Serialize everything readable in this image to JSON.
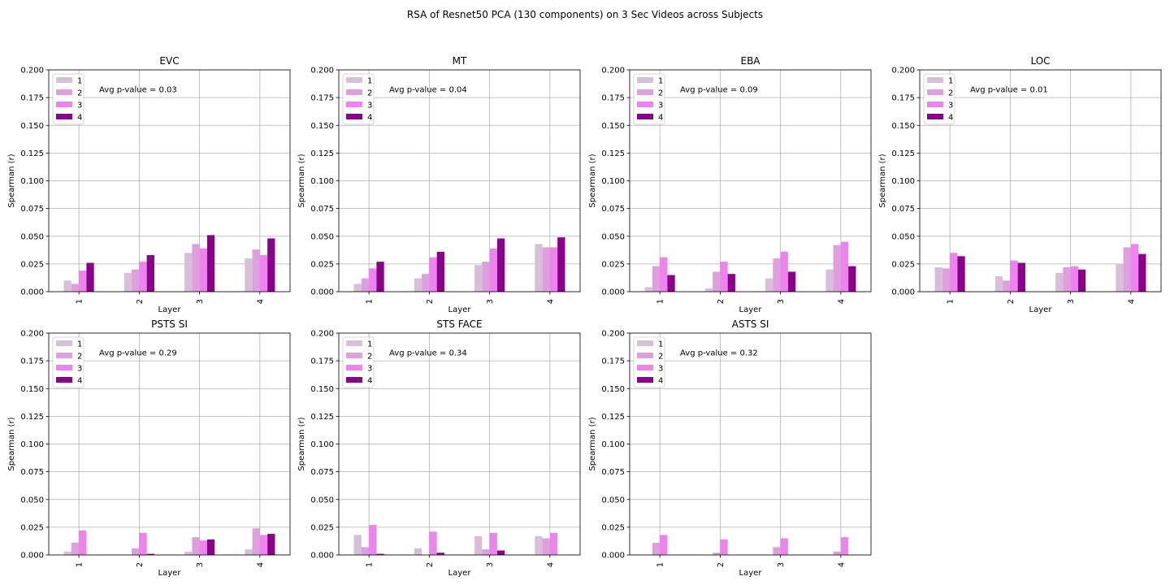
{
  "figure": {
    "suptitle": "RSA of Resnet50 PCA (130 components) on 3 Sec Videos across Subjects"
  },
  "legend": {
    "entries": [
      "1",
      "2",
      "3",
      "4"
    ],
    "placement": "upper-left"
  },
  "colors": [
    "#d8bfd8",
    "#dda0dd",
    "#ee82ee",
    "#8b008b"
  ],
  "chart_data": [
    {
      "type": "bar",
      "title": "EVC",
      "xlabel": "Layer",
      "ylabel": "Spearman (r)",
      "annotation": "Avg p-value = 0.03",
      "categories": [
        "1",
        "2",
        "3",
        "4"
      ],
      "ylim": [
        0,
        0.2
      ],
      "yticks": [
        "0.000",
        "0.025",
        "0.050",
        "0.075",
        "0.100",
        "0.125",
        "0.150",
        "0.175",
        "0.200"
      ],
      "grid": true,
      "series": [
        {
          "name": "1",
          "values": [
            0.01,
            0.017,
            0.035,
            0.03
          ]
        },
        {
          "name": "2",
          "values": [
            0.007,
            0.02,
            0.043,
            0.038
          ]
        },
        {
          "name": "3",
          "values": [
            0.019,
            0.027,
            0.039,
            0.033
          ]
        },
        {
          "name": "4",
          "values": [
            0.026,
            0.033,
            0.051,
            0.048
          ]
        }
      ]
    },
    {
      "type": "bar",
      "title": "MT",
      "xlabel": "Layer",
      "ylabel": "Spearman (r)",
      "annotation": "Avg p-value = 0.04",
      "categories": [
        "1",
        "2",
        "3",
        "4"
      ],
      "ylim": [
        0,
        0.2
      ],
      "yticks": [
        "0.000",
        "0.025",
        "0.050",
        "0.075",
        "0.100",
        "0.125",
        "0.150",
        "0.175",
        "0.200"
      ],
      "grid": true,
      "series": [
        {
          "name": "1",
          "values": [
            0.007,
            0.012,
            0.024,
            0.043
          ]
        },
        {
          "name": "2",
          "values": [
            0.012,
            0.016,
            0.027,
            0.04
          ]
        },
        {
          "name": "3",
          "values": [
            0.021,
            0.031,
            0.039,
            0.04
          ]
        },
        {
          "name": "4",
          "values": [
            0.027,
            0.036,
            0.048,
            0.049
          ]
        }
      ]
    },
    {
      "type": "bar",
      "title": "EBA",
      "xlabel": "Layer",
      "ylabel": "Spearman (r)",
      "annotation": "Avg p-value = 0.09",
      "categories": [
        "1",
        "2",
        "3",
        "4"
      ],
      "ylim": [
        0,
        0.2
      ],
      "yticks": [
        "0.000",
        "0.025",
        "0.050",
        "0.075",
        "0.100",
        "0.125",
        "0.150",
        "0.175",
        "0.200"
      ],
      "grid": true,
      "series": [
        {
          "name": "1",
          "values": [
            0.004,
            0.003,
            0.012,
            0.02
          ]
        },
        {
          "name": "2",
          "values": [
            0.023,
            0.018,
            0.03,
            0.042
          ]
        },
        {
          "name": "3",
          "values": [
            0.031,
            0.027,
            0.036,
            0.045
          ]
        },
        {
          "name": "4",
          "values": [
            0.015,
            0.016,
            0.018,
            0.023
          ]
        }
      ]
    },
    {
      "type": "bar",
      "title": "LOC",
      "xlabel": "Layer",
      "ylabel": "Spearman (r)",
      "annotation": "Avg p-value = 0.01",
      "categories": [
        "1",
        "2",
        "3",
        "4"
      ],
      "ylim": [
        0,
        0.2
      ],
      "yticks": [
        "0.000",
        "0.025",
        "0.050",
        "0.075",
        "0.100",
        "0.125",
        "0.150",
        "0.175",
        "0.200"
      ],
      "grid": true,
      "series": [
        {
          "name": "1",
          "values": [
            0.022,
            0.014,
            0.017,
            0.025
          ]
        },
        {
          "name": "2",
          "values": [
            0.021,
            0.01,
            0.022,
            0.04
          ]
        },
        {
          "name": "3",
          "values": [
            0.035,
            0.028,
            0.023,
            0.043
          ]
        },
        {
          "name": "4",
          "values": [
            0.032,
            0.026,
            0.02,
            0.034
          ]
        }
      ]
    },
    {
      "type": "bar",
      "title": "PSTS SI",
      "xlabel": "Layer",
      "ylabel": "Spearman (r)",
      "annotation": "Avg p-value = 0.29",
      "categories": [
        "1",
        "2",
        "3",
        "4"
      ],
      "ylim": [
        0,
        0.2
      ],
      "yticks": [
        "0.000",
        "0.025",
        "0.050",
        "0.075",
        "0.100",
        "0.125",
        "0.150",
        "0.175",
        "0.200"
      ],
      "grid": true,
      "series": [
        {
          "name": "1",
          "values": [
            0.003,
            0.0,
            0.003,
            0.005
          ]
        },
        {
          "name": "2",
          "values": [
            0.011,
            0.006,
            0.016,
            0.024
          ]
        },
        {
          "name": "3",
          "values": [
            0.022,
            0.02,
            0.013,
            0.018
          ]
        },
        {
          "name": "4",
          "values": [
            0.0,
            0.001,
            0.014,
            0.019
          ]
        }
      ]
    },
    {
      "type": "bar",
      "title": "STS FACE",
      "xlabel": "Layer",
      "ylabel": "Spearman (r)",
      "annotation": "Avg p-value = 0.34",
      "categories": [
        "1",
        "2",
        "3",
        "4"
      ],
      "ylim": [
        0,
        0.2
      ],
      "yticks": [
        "0.000",
        "0.025",
        "0.050",
        "0.075",
        "0.100",
        "0.125",
        "0.150",
        "0.175",
        "0.200"
      ],
      "grid": true,
      "series": [
        {
          "name": "1",
          "values": [
            0.018,
            0.006,
            0.017,
            0.017
          ]
        },
        {
          "name": "2",
          "values": [
            0.007,
            0.0,
            0.005,
            0.015
          ]
        },
        {
          "name": "3",
          "values": [
            0.027,
            0.021,
            0.02,
            0.02
          ]
        },
        {
          "name": "4",
          "values": [
            0.001,
            0.002,
            0.004,
            0.0
          ]
        }
      ]
    },
    {
      "type": "bar",
      "title": "ASTS SI",
      "xlabel": "Layer",
      "ylabel": "Spearman (r)",
      "annotation": "Avg p-value = 0.32",
      "categories": [
        "1",
        "2",
        "3",
        "4"
      ],
      "ylim": [
        0,
        0.2
      ],
      "yticks": [
        "0.000",
        "0.025",
        "0.050",
        "0.075",
        "0.100",
        "0.125",
        "0.150",
        "0.175",
        "0.200"
      ],
      "grid": true,
      "series": [
        {
          "name": "1",
          "values": [
            0.0,
            0.0,
            0.0,
            0.0
          ]
        },
        {
          "name": "2",
          "values": [
            0.011,
            0.002,
            0.007,
            0.003
          ]
        },
        {
          "name": "3",
          "values": [
            0.018,
            0.014,
            0.015,
            0.016
          ]
        },
        {
          "name": "4",
          "values": [
            0.0,
            0.0,
            0.0,
            0.0
          ]
        }
      ]
    }
  ]
}
